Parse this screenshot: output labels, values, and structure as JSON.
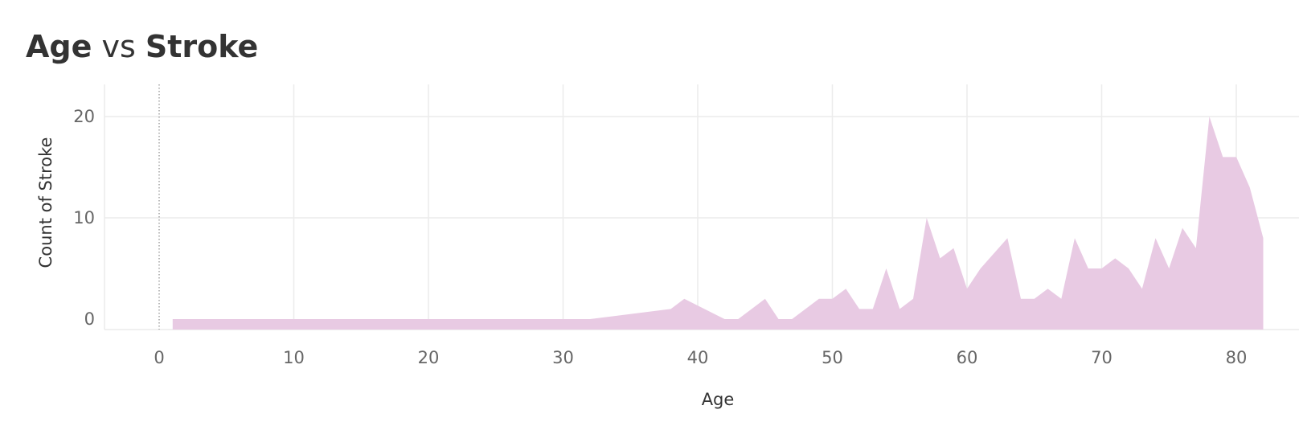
{
  "title": {
    "part1": "Age",
    "part2": "vs",
    "part3": "Stroke"
  },
  "chart_data": {
    "type": "area",
    "title": "Age vs Stroke",
    "xlabel": "Age",
    "ylabel": "Count of Stroke",
    "xlim": [
      -4,
      84
    ],
    "ylim": [
      -1,
      23
    ],
    "xticks": [
      0,
      10,
      20,
      30,
      40,
      50,
      60,
      70,
      80
    ],
    "yticks": [
      0,
      10,
      20
    ],
    "grid": true,
    "fill_color": "#e8cae3",
    "reference_line": {
      "x": 0,
      "style": "dotted"
    },
    "series": [
      {
        "x": [
          1,
          32,
          38,
          39,
          42,
          43,
          45,
          46,
          47,
          49,
          50,
          51,
          52,
          53,
          54,
          55,
          56,
          57,
          58,
          59,
          60,
          61,
          63,
          64,
          65,
          66,
          67,
          68,
          69,
          70,
          71,
          72,
          73,
          74,
          75,
          76,
          77,
          78,
          79,
          80,
          81,
          82
        ],
        "y": [
          0,
          0,
          1,
          2,
          0,
          0,
          2,
          0,
          0,
          2,
          2,
          3,
          1,
          1,
          5,
          1,
          2,
          10,
          6,
          7,
          3,
          5,
          8,
          2,
          2,
          3,
          2,
          8,
          5,
          5,
          6,
          5,
          3,
          8,
          5,
          9,
          7,
          20,
          16,
          16,
          13,
          8
        ]
      }
    ]
  }
}
